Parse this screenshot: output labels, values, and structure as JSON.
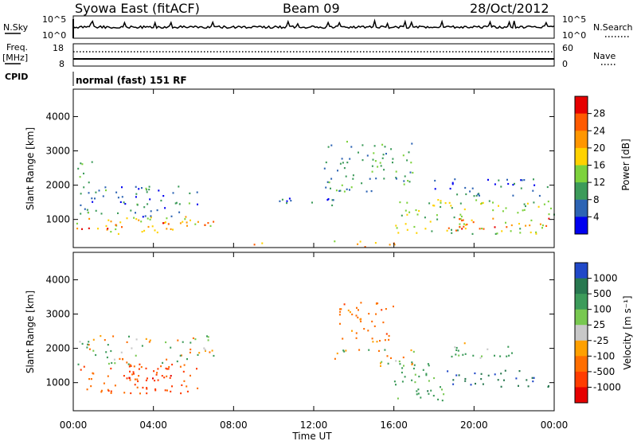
{
  "header": {
    "station": "Syowa East (fitACF)",
    "beam": "Beam 09",
    "date": "28/Oct/2012"
  },
  "noise_panel": {
    "left_label": "N.Sky",
    "right_label": "N.Search",
    "left_ticks": [
      "10^5",
      "10^0"
    ],
    "right_ticks": [
      "10^5",
      "10^0"
    ]
  },
  "freq_panel": {
    "left_label_1": "Freq.",
    "left_label_2": "[MHz]",
    "right_label": "Nave",
    "left_ticks": [
      "18",
      "8"
    ],
    "right_ticks": [
      "60",
      "0"
    ]
  },
  "cpid": {
    "label": "CPID",
    "mode": "normal (fast) 151 RF"
  },
  "axes": {
    "y_label": "Slant Range [km]",
    "y_ticks": [
      "4000",
      "3000",
      "2000",
      "1000"
    ],
    "x_label": "Time UT",
    "x_ticks": [
      "00:00",
      "04:00",
      "08:00",
      "12:00",
      "16:00",
      "20:00",
      "00:00"
    ]
  },
  "colorbars": {
    "power": {
      "label": "Power [dB]",
      "ticks": [
        "28",
        "24",
        "20",
        "16",
        "12",
        "8",
        "4"
      ],
      "colors": [
        "#e60000",
        "#ff5a00",
        "#ff9600",
        "#ffd200",
        "#7dd23c",
        "#3c9b5a",
        "#2d64b4",
        "#0000f0"
      ]
    },
    "velocity": {
      "label": "Velocity [m s⁻¹]",
      "ticks": [
        "1000",
        "500",
        "100",
        "25",
        "-25",
        "-100",
        "-500",
        "-1000"
      ],
      "colors": [
        "#2048c8",
        "#287850",
        "#3c9b5a",
        "#78c850",
        "#c8c8c8",
        "#ffa000",
        "#ff6e00",
        "#ff3c00",
        "#e60000"
      ]
    }
  },
  "chart_data": [
    {
      "type": "heatmap",
      "name": "power",
      "xlabel": "Time UT",
      "ylabel": "Slant Range [km]",
      "x_range_hours": [
        0,
        24
      ],
      "ylim_km": [
        180,
        4800
      ],
      "colorbar": "Power [dB]",
      "clim": [
        0,
        32
      ],
      "regions": [
        {
          "t": [
            0.1,
            7.0
          ],
          "r": [
            600,
            1100
          ],
          "dB": 18
        },
        {
          "t": [
            2.5,
            7.0
          ],
          "r": [
            800,
            1000
          ],
          "dB": 24
        },
        {
          "t": [
            0.1,
            2.5
          ],
          "r": [
            700,
            900
          ],
          "dB": 28
        },
        {
          "t": [
            0.3,
            6.2
          ],
          "r": [
            1100,
            2000
          ],
          "dB": 8
        },
        {
          "t": [
            0.1,
            1.0
          ],
          "r": [
            2100,
            2700
          ],
          "dB": 12
        },
        {
          "t": [
            8.2,
            9.4
          ],
          "r": [
            250,
            340
          ],
          "dB": 22
        },
        {
          "t": [
            10.0,
            13.0
          ],
          "r": [
            1400,
            1700
          ],
          "dB": 6
        },
        {
          "t": [
            12.5,
            17.0
          ],
          "r": [
            1800,
            3300
          ],
          "dB": 10
        },
        {
          "t": [
            13.0,
            16.5
          ],
          "r": [
            200,
            400
          ],
          "dB": 20
        },
        {
          "t": [
            16.0,
            24.0
          ],
          "r": [
            600,
            1600
          ],
          "dB": 14
        },
        {
          "t": [
            18.5,
            23.8
          ],
          "r": [
            700,
            1100
          ],
          "dB": 26
        },
        {
          "t": [
            18.0,
            24.0
          ],
          "r": [
            1700,
            2200
          ],
          "dB": 6
        }
      ]
    },
    {
      "type": "heatmap",
      "name": "velocity",
      "xlabel": "Time UT",
      "ylabel": "Slant Range [km]",
      "x_range_hours": [
        0,
        24
      ],
      "ylim_km": [
        180,
        4800
      ],
      "colorbar": "Velocity [m s⁻¹]",
      "regions": [
        {
          "t": [
            0.2,
            6.5
          ],
          "r": [
            700,
            1500
          ],
          "v": -500
        },
        {
          "t": [
            2.5,
            5.5
          ],
          "r": [
            900,
            1600
          ],
          "v": -800
        },
        {
          "t": [
            0.2,
            7.0
          ],
          "r": [
            1500,
            2400
          ],
          "v": 0
        },
        {
          "t": [
            13.0,
            16.0
          ],
          "r": [
            2200,
            3400
          ],
          "v": -300
        },
        {
          "t": [
            13.0,
            17.0
          ],
          "r": [
            1500,
            2000
          ],
          "v": 20
        },
        {
          "t": [
            16.0,
            18.5
          ],
          "r": [
            500,
            1600
          ],
          "v": 300
        },
        {
          "t": [
            18.5,
            24.0
          ],
          "r": [
            900,
            1400
          ],
          "v": 900
        },
        {
          "t": [
            18.5,
            22.0
          ],
          "r": [
            1700,
            2200
          ],
          "v": 200
        }
      ]
    }
  ]
}
